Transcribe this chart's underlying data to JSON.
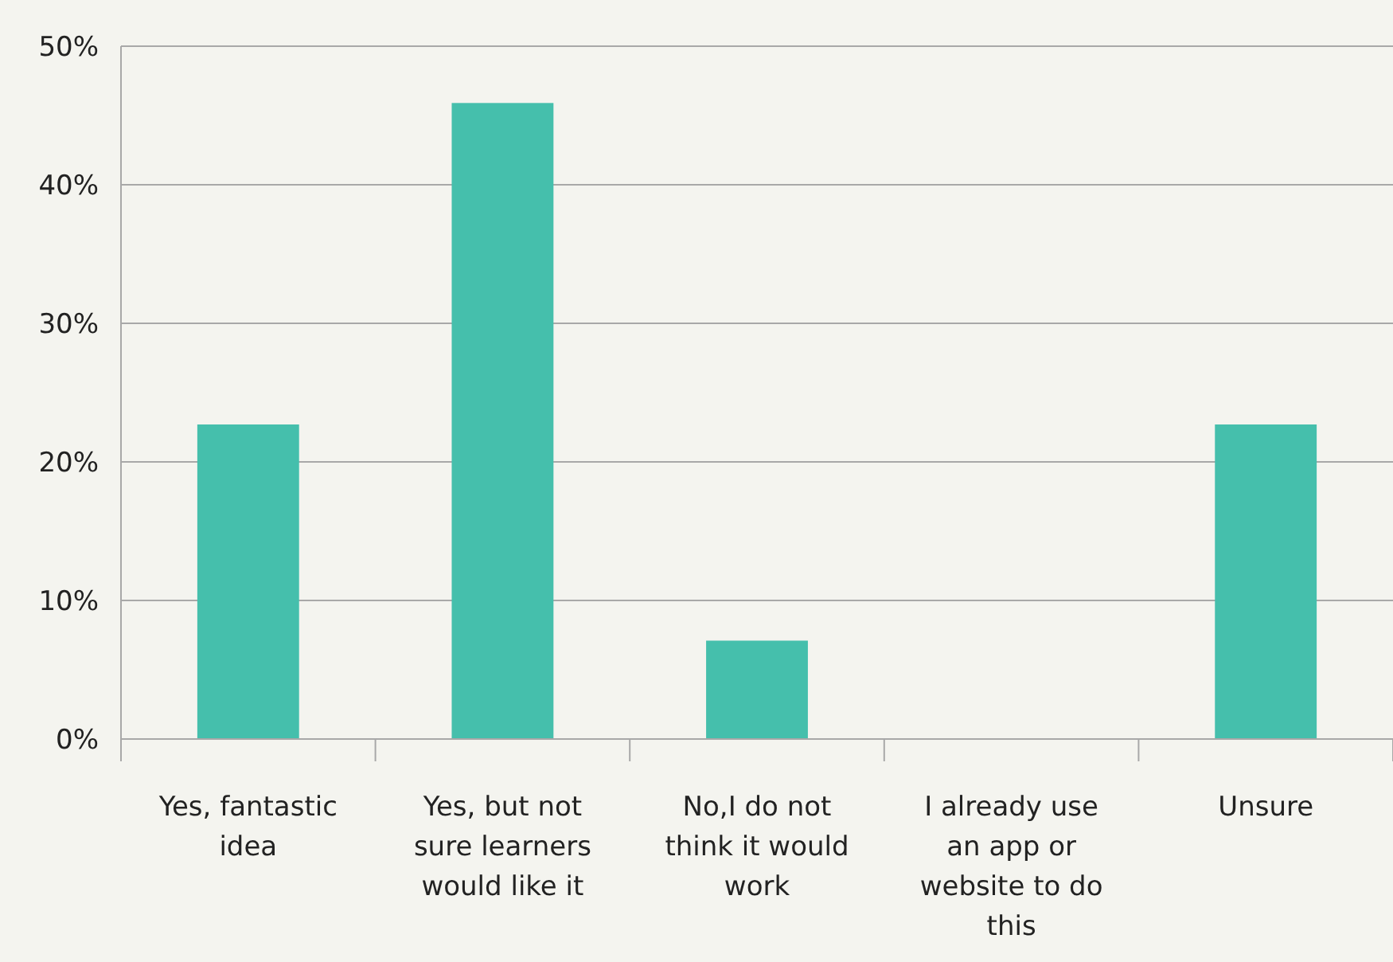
{
  "chart_data": {
    "type": "bar",
    "categories": [
      "Yes, fantastic idea",
      "Yes, but not sure learners would like it",
      "No,I do not think it would work",
      "I already use an app or website to do this",
      "Unsure"
    ],
    "values": [
      22.7,
      45.9,
      7.1,
      0,
      22.7
    ],
    "color": "#45bfac",
    "ylim": [
      0,
      50
    ],
    "yticks": [
      {
        "value": 0,
        "label": "0%"
      },
      {
        "value": 10,
        "label": "10%"
      },
      {
        "value": 20,
        "label": "20%"
      },
      {
        "value": 30,
        "label": "30%"
      },
      {
        "value": 40,
        "label": "40%"
      },
      {
        "value": 50,
        "label": "50%"
      }
    ],
    "grid": "y"
  }
}
